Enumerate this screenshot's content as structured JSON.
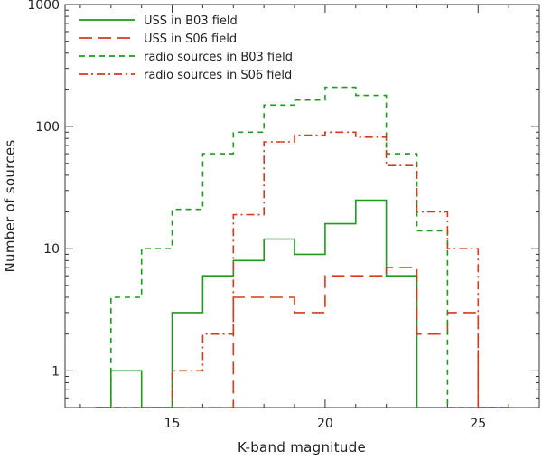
{
  "chart_data": {
    "type": "line",
    "drawstyle": "steps",
    "title": "",
    "xlabel": "K-band magnitude",
    "ylabel": "Number of sources",
    "xlim": [
      11.5,
      27
    ],
    "ylim": [
      0.5,
      1000
    ],
    "yscale": "log",
    "x_ticks": [
      15,
      20,
      25
    ],
    "y_ticks": [
      1,
      10,
      100,
      1000
    ],
    "x_tick_labels": [
      "15",
      "20",
      "25"
    ],
    "y_tick_labels": [
      "1",
      "10",
      "100",
      "1000"
    ],
    "grid": false,
    "legend_position": "top-left",
    "bin_edges": [
      12.5,
      13,
      14,
      15,
      16,
      17,
      18,
      19,
      20,
      21,
      22,
      23,
      24,
      25,
      26
    ],
    "series": [
      {
        "name": "USS in B03 field",
        "color": "#1e9a1e",
        "linestyle": "solid",
        "values": [
          0.5,
          1,
          0.5,
          3,
          6,
          8,
          12,
          9,
          16,
          25,
          6,
          0.5,
          0.5,
          0.5
        ]
      },
      {
        "name": "USS in S06 field",
        "color": "#d63a1a",
        "linestyle": "long-dash",
        "values": [
          0.5,
          0.5,
          0.5,
          0.5,
          0.5,
          4,
          4,
          3,
          6,
          6,
          7,
          2,
          3,
          0.5
        ]
      },
      {
        "name": "radio sources in B03 field",
        "color": "#1e9a1e",
        "linestyle": "short-dash",
        "values": [
          0.5,
          4,
          10,
          21,
          60,
          90,
          150,
          165,
          210,
          180,
          60,
          14,
          0.5,
          0.5
        ]
      },
      {
        "name": "radio sources in S06 field",
        "color": "#d63a1a",
        "linestyle": "dash-dot",
        "values": [
          0.5,
          0.5,
          0.5,
          1,
          2,
          19,
          75,
          85,
          90,
          82,
          48,
          20,
          10,
          0.5
        ]
      }
    ]
  }
}
